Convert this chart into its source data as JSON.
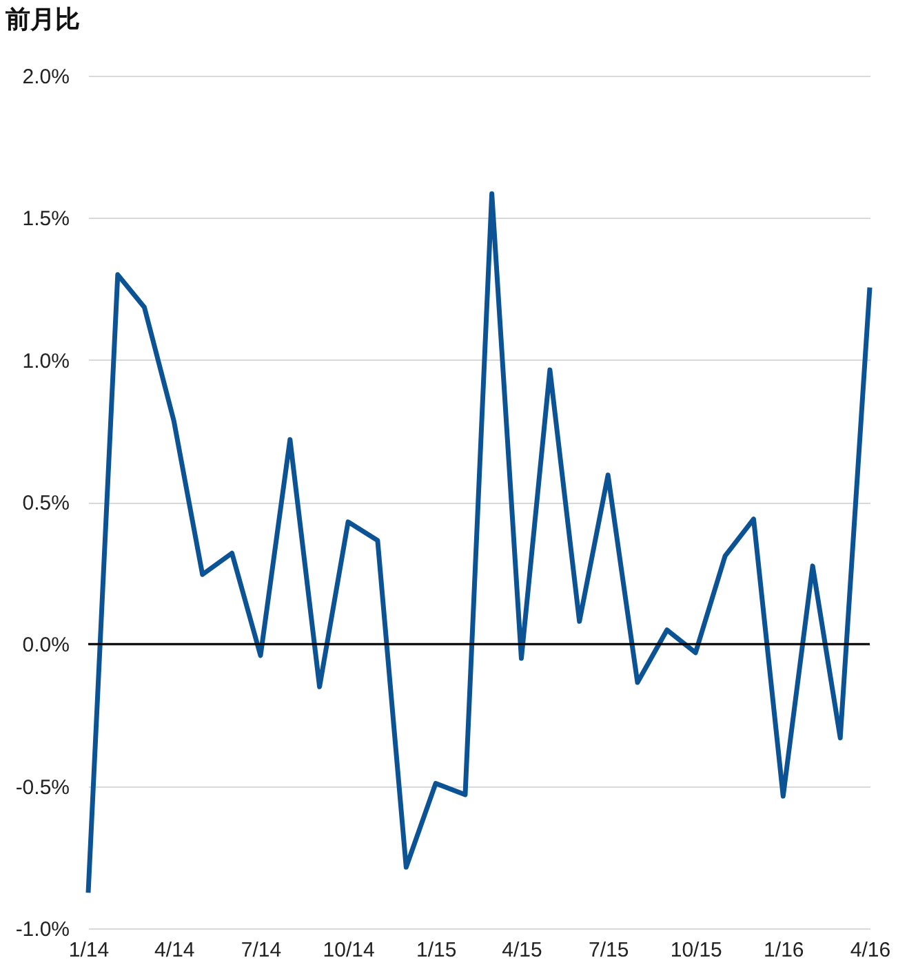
{
  "chart_data": {
    "type": "line",
    "title": "前月比",
    "x": [
      "2014-01",
      "2014-02",
      "2014-03",
      "2014-04",
      "2014-05",
      "2014-06",
      "2014-07",
      "2014-08",
      "2014-09",
      "2014-10",
      "2014-11",
      "2014-12",
      "2015-01",
      "2015-02",
      "2015-03",
      "2015-04",
      "2015-05",
      "2015-06",
      "2015-07",
      "2015-08",
      "2015-09",
      "2015-10",
      "2015-11",
      "2015-12",
      "2016-01",
      "2016-02",
      "2016-03",
      "2016-04"
    ],
    "series": [
      {
        "color": "#0b5394",
        "values": [
          -0.875,
          1.3,
          1.185,
          0.785,
          0.245,
          0.32,
          -0.04,
          0.72,
          -0.15,
          0.43,
          0.365,
          -0.785,
          -0.49,
          -0.53,
          1.585,
          -0.05,
          0.965,
          0.08,
          0.595,
          -0.135,
          0.05,
          -0.03,
          0.31,
          0.44,
          -0.535,
          0.275,
          -0.33,
          1.255
        ]
      }
    ],
    "xlim": [
      "2014-01",
      "2016-04"
    ],
    "xticks": [
      {
        "value": "2014-01",
        "label": "1/14"
      },
      {
        "value": "2014-04",
        "label": "4/14"
      },
      {
        "value": "2014-07",
        "label": "7/14"
      },
      {
        "value": "2014-10",
        "label": "10/14"
      },
      {
        "value": "2015-01",
        "label": "1/15"
      },
      {
        "value": "2015-04",
        "label": "4/15"
      },
      {
        "value": "2015-07",
        "label": "7/15"
      },
      {
        "value": "2015-10",
        "label": "10/15"
      },
      {
        "value": "2016-01",
        "label": "1/16"
      },
      {
        "value": "2016-04",
        "label": "4/16"
      }
    ],
    "ylim": [
      -1.0,
      2.0
    ],
    "yticks": [
      {
        "value": -1.0,
        "label": "-1.0%"
      },
      {
        "value": -0.5,
        "label": "-0.5%"
      },
      {
        "value": 0.0,
        "label": "0.0%"
      },
      {
        "value": 0.5,
        "label": "0.5%"
      },
      {
        "value": 1.0,
        "label": "1.0%"
      },
      {
        "value": 1.5,
        "label": "1.5%"
      },
      {
        "value": 2.0,
        "label": "2.0%"
      }
    ],
    "ref_lines": [
      {
        "axis": "y",
        "value": 0,
        "color": "#000000"
      }
    ],
    "grid": "y",
    "marker": "none",
    "line_style": "solid"
  }
}
